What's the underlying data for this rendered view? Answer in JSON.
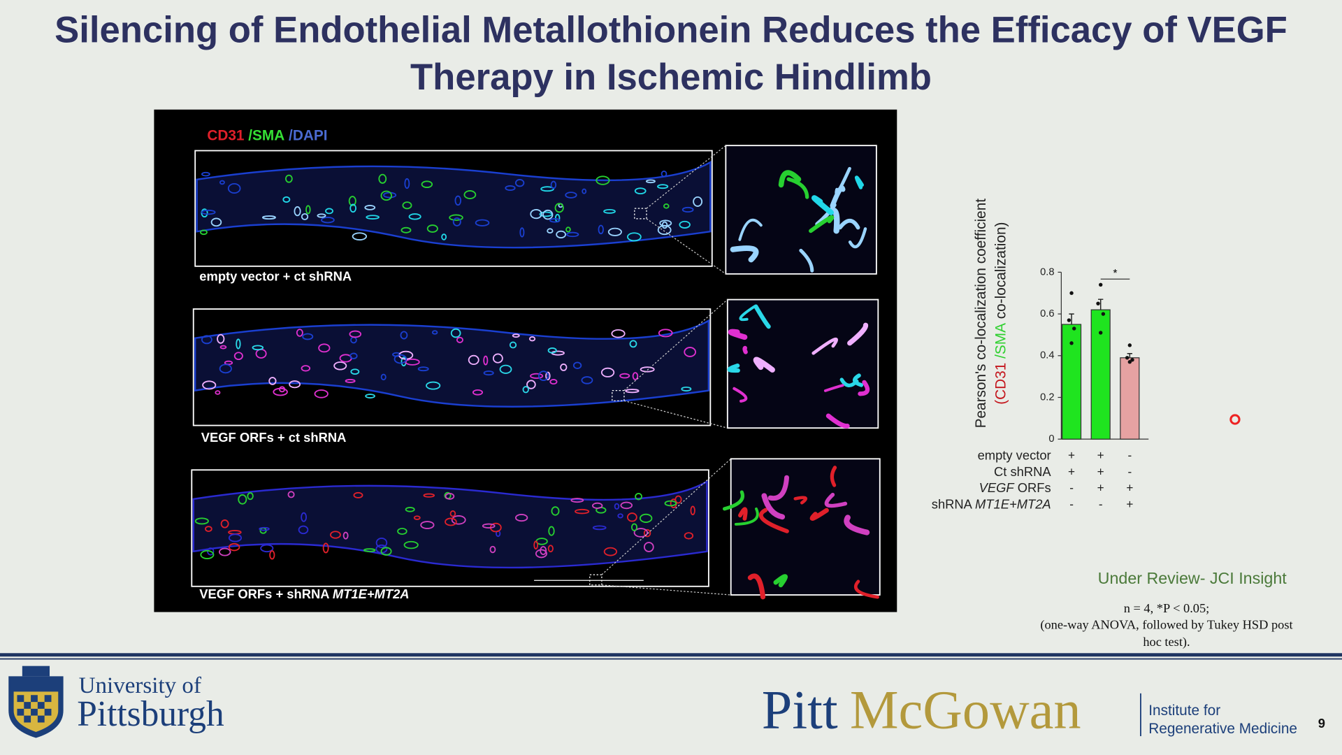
{
  "title": [
    "Silencing of Endothelial Metallothionein Reduces the Efficacy of VEGF",
    "Therapy in Ischemic Hindlimb"
  ],
  "figure": {
    "stain": [
      "CD31",
      " /SMA",
      " /DAPI"
    ],
    "panels": [
      {
        "label": [
          "empty vector + ct shRNA"
        ]
      },
      {
        "label": [
          "VEGF ORFs + ct shRNA"
        ]
      },
      {
        "label": [
          "VEGF ORFs + shRNA ",
          "MT1E+MT2A"
        ]
      }
    ]
  },
  "chart_data": {
    "type": "bar",
    "ylabel": [
      "Pearson's co-localization coefficient",
      [
        "(",
        "CD31",
        " /SMA",
        " co-localization)"
      ]
    ],
    "ylim": [
      0,
      0.8
    ],
    "yticks": [
      0,
      0.2,
      0.4,
      0.6,
      0.8
    ],
    "values": [
      0.55,
      0.62,
      0.39
    ],
    "errors": [
      0.05,
      0.05,
      0.02
    ],
    "colors": [
      "#1fe41f",
      "#1fe41f",
      "#e6a2a2"
    ],
    "points": [
      [
        0.7,
        0.57,
        0.53,
        0.46
      ],
      [
        0.74,
        0.65,
        0.6,
        0.51
      ],
      [
        0.45,
        0.39,
        0.38,
        0.37
      ]
    ],
    "significance": "*",
    "conditions": [
      {
        "label": [
          "empty vector"
        ],
        "signs": [
          "+",
          "+",
          "-"
        ]
      },
      {
        "label": [
          "Ct shRNA"
        ],
        "signs": [
          "+",
          "+",
          "-"
        ]
      },
      {
        "label": [
          "VEGF",
          " ORFs"
        ],
        "signs": [
          "-",
          "+",
          "+"
        ]
      },
      {
        "label": [
          "shRNA ",
          "MT1E+MT2A"
        ],
        "signs": [
          "-",
          "-",
          "+"
        ]
      }
    ]
  },
  "notes": {
    "status": "Under Review- JCI Insight",
    "stats": [
      "n = 4,  *P < 0.05;",
      "(one-way ANOVA, followed by Tukey HSD post",
      "hoc test)."
    ]
  },
  "footer": {
    "university": [
      "University of",
      "Pittsburgh"
    ],
    "brand": [
      "Pitt",
      "McGowan"
    ],
    "institute": [
      "Institute for",
      "Regenerative Medicine"
    ],
    "page": "9"
  }
}
